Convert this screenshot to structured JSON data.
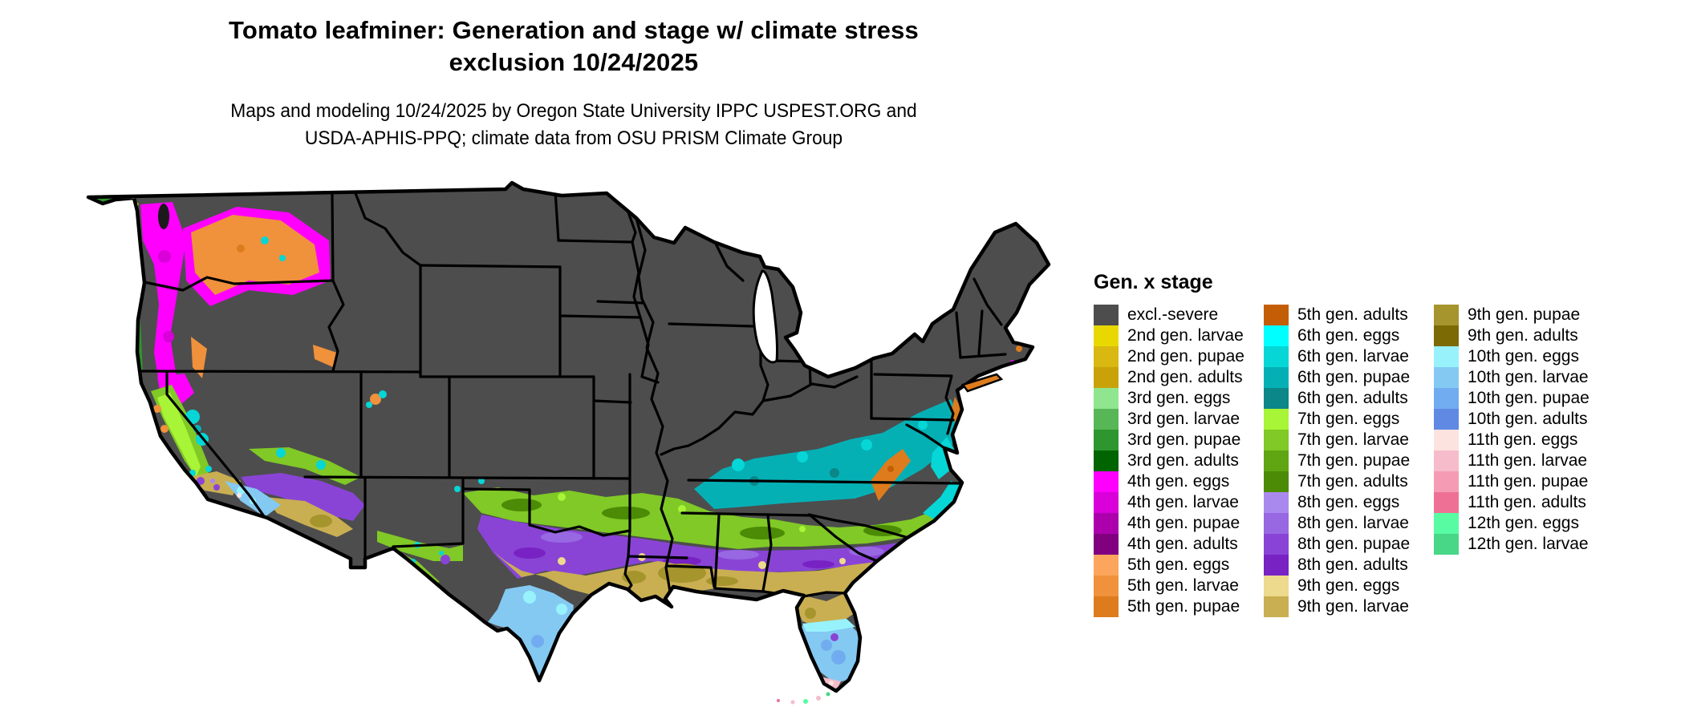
{
  "header": {
    "title_line1": "Tomato leafminer: Generation and stage w/ climate stress",
    "title_line2": "exclusion 10/24/2025",
    "subtitle_line1": "Maps and modeling 10/24/2025 by Oregon State University IPPC USPEST.ORG and",
    "subtitle_line2": "USDA-APHIS-PPQ; climate data from OSU PRISM Climate Group"
  },
  "legend": {
    "title": "Gen. x stage",
    "columns": [
      [
        {
          "label": "excl.-severe",
          "color": "#4d4d4d"
        },
        {
          "label": "2nd gen. larvae",
          "color": "#e8d800"
        },
        {
          "label": "2nd gen. pupae",
          "color": "#d9b811"
        },
        {
          "label": "2nd gen. adults",
          "color": "#c9a20a"
        },
        {
          "label": "3rd gen. eggs",
          "color": "#8fe68f"
        },
        {
          "label": "3rd gen. larvae",
          "color": "#57b757"
        },
        {
          "label": "3rd gen. pupae",
          "color": "#2e962e"
        },
        {
          "label": "3rd gen. adults",
          "color": "#006400"
        },
        {
          "label": "4th gen. eggs",
          "color": "#ff00ff"
        },
        {
          "label": "4th gen. larvae",
          "color": "#d900d9"
        },
        {
          "label": "4th gen. pupae",
          "color": "#ad00ad"
        },
        {
          "label": "4th gen. adults",
          "color": "#800080"
        },
        {
          "label": "5th gen. eggs",
          "color": "#fca55c"
        },
        {
          "label": "5th gen. larvae",
          "color": "#f0913c"
        },
        {
          "label": "5th gen. pupae",
          "color": "#de7c1d"
        }
      ],
      [
        {
          "label": "5th gen. adults",
          "color": "#c45e06"
        },
        {
          "label": "6th gen. eggs",
          "color": "#00ffff"
        },
        {
          "label": "6th gen. larvae",
          "color": "#06d6d6"
        },
        {
          "label": "6th gen. pupae",
          "color": "#05b0b5"
        },
        {
          "label": "6th gen. adults",
          "color": "#0b8689"
        },
        {
          "label": "7th gen. eggs",
          "color": "#a8f436"
        },
        {
          "label": "7th gen. larvae",
          "color": "#80c926"
        },
        {
          "label": "7th gen. pupae",
          "color": "#60a512"
        },
        {
          "label": "7th gen. adults",
          "color": "#4c8b06"
        },
        {
          "label": "8th gen. eggs",
          "color": "#aa89ef"
        },
        {
          "label": "8th gen. larvae",
          "color": "#9768e2"
        },
        {
          "label": "8th gen. pupae",
          "color": "#8944d6"
        },
        {
          "label": "8th gen. adults",
          "color": "#7822c4"
        },
        {
          "label": "9th gen. eggs",
          "color": "#eeda8c"
        },
        {
          "label": "9th gen. larvae",
          "color": "#c9af52"
        }
      ],
      [
        {
          "label": "9th gen. pupae",
          "color": "#a6942c"
        },
        {
          "label": "9th gen. adults",
          "color": "#7c6a04"
        },
        {
          "label": "10th gen. eggs",
          "color": "#98f2fc"
        },
        {
          "label": "10th gen. larvae",
          "color": "#84c9f2"
        },
        {
          "label": "10th gen. pupae",
          "color": "#72acf0"
        },
        {
          "label": "10th gen. adults",
          "color": "#6089e4"
        },
        {
          "label": "11th gen. eggs",
          "color": "#fde3e0"
        },
        {
          "label": "11th gen. larvae",
          "color": "#f6bccb"
        },
        {
          "label": "11th gen. pupae",
          "color": "#f59cb4"
        },
        {
          "label": "11th gen. adults",
          "color": "#ee7195"
        },
        {
          "label": "12th gen. eggs",
          "color": "#58fba2"
        },
        {
          "label": "12th gen. larvae",
          "color": "#48d687"
        }
      ]
    ]
  },
  "map": {
    "region": "Contiguous United States",
    "base_color": "#4d4d4d",
    "border_color": "#000000",
    "background": "#ffffff"
  }
}
